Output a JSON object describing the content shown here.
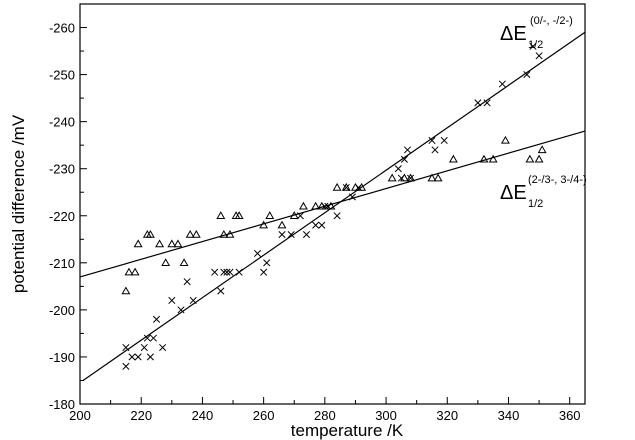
{
  "chart_data": {
    "type": "scatter",
    "xlabel": "temperature /K",
    "ylabel": "potential difference /mV",
    "xlim": [
      200,
      365
    ],
    "ylim": [
      -180,
      -265
    ],
    "x_ticks": [
      200,
      220,
      240,
      260,
      280,
      300,
      320,
      340,
      360
    ],
    "y_ticks": [
      -180,
      -190,
      -200,
      -210,
      -220,
      -230,
      -240,
      -250,
      -260
    ],
    "x_tick_labels": [
      "200",
      "220",
      "240",
      "260",
      "280",
      "300",
      "320",
      "340",
      "360"
    ],
    "y_tick_labels": [
      "-180",
      "-190",
      "-200",
      "-210",
      "-220",
      "-230",
      "-240",
      "-250",
      "-260"
    ],
    "grid": false,
    "series": [
      {
        "marker": "x",
        "values": [
          [
            215,
            -192
          ],
          [
            215,
            -188
          ],
          [
            217,
            -190
          ],
          [
            219,
            -190
          ],
          [
            221,
            -192
          ],
          [
            222,
            -194
          ],
          [
            223,
            -190
          ],
          [
            224,
            -194
          ],
          [
            225,
            -198
          ],
          [
            227,
            -192
          ],
          [
            230,
            -202
          ],
          [
            233,
            -200
          ],
          [
            235,
            -206
          ],
          [
            237,
            -202
          ],
          [
            244,
            -208
          ],
          [
            246,
            -204
          ],
          [
            247,
            -208
          ],
          [
            248,
            -208
          ],
          [
            249,
            -208
          ],
          [
            252,
            -208
          ],
          [
            258,
            -212
          ],
          [
            260,
            -208
          ],
          [
            261,
            -210
          ],
          [
            266,
            -216
          ],
          [
            269,
            -216
          ],
          [
            272,
            -220
          ],
          [
            274,
            -216
          ],
          [
            277,
            -218
          ],
          [
            279,
            -218
          ],
          [
            280,
            -222
          ],
          [
            281,
            -222
          ],
          [
            284,
            -220
          ],
          [
            287,
            -226
          ],
          [
            289,
            -224
          ],
          [
            291,
            -226
          ],
          [
            304,
            -230
          ],
          [
            305,
            -228
          ],
          [
            306,
            -232
          ],
          [
            307,
            -234
          ],
          [
            308,
            -228
          ],
          [
            315,
            -236
          ],
          [
            316,
            -234
          ],
          [
            319,
            -236
          ],
          [
            330,
            -244
          ],
          [
            333,
            -244
          ],
          [
            338,
            -248
          ],
          [
            346,
            -250
          ],
          [
            348,
            -256
          ],
          [
            350,
            -254
          ]
        ],
        "fit_line": {
          "x": [
            201,
            365
          ],
          "y": [
            -185,
            -259
          ]
        }
      },
      {
        "marker": "triangle",
        "values": [
          [
            215,
            -204
          ],
          [
            216,
            -208
          ],
          [
            218,
            -208
          ],
          [
            219,
            -214
          ],
          [
            222,
            -216
          ],
          [
            223,
            -216
          ],
          [
            226,
            -214
          ],
          [
            228,
            -210
          ],
          [
            230,
            -214
          ],
          [
            232,
            -214
          ],
          [
            234,
            -210
          ],
          [
            236,
            -216
          ],
          [
            238,
            -216
          ],
          [
            246,
            -220
          ],
          [
            247,
            -216
          ],
          [
            249,
            -216
          ],
          [
            251,
            -220
          ],
          [
            252,
            -220
          ],
          [
            260,
            -218
          ],
          [
            262,
            -220
          ],
          [
            266,
            -218
          ],
          [
            270,
            -220
          ],
          [
            273,
            -222
          ],
          [
            277,
            -222
          ],
          [
            279,
            -222
          ],
          [
            282,
            -222
          ],
          [
            284,
            -226
          ],
          [
            287,
            -226
          ],
          [
            290,
            -226
          ],
          [
            292,
            -226
          ],
          [
            302,
            -228
          ],
          [
            306,
            -228
          ],
          [
            308,
            -228
          ],
          [
            315,
            -228
          ],
          [
            317,
            -228
          ],
          [
            322,
            -232
          ],
          [
            332,
            -232
          ],
          [
            335,
            -232
          ],
          [
            339,
            -236
          ],
          [
            347,
            -232
          ],
          [
            350,
            -232
          ],
          [
            351,
            -234
          ]
        ],
        "fit_line": {
          "x": [
            200,
            365
          ],
          "y": [
            -207,
            -238
          ]
        }
      }
    ],
    "annotations": [
      {
        "text": "ΔE",
        "subscript": "1/2",
        "superscript": "(0/-, -/2-)",
        "at_x": 327,
        "at_y": -261
      },
      {
        "text": "ΔE",
        "subscript": "1/2",
        "superscript": "(2-/3-, 3-/4-)",
        "at_x": 341,
        "at_y": -221
      }
    ]
  }
}
